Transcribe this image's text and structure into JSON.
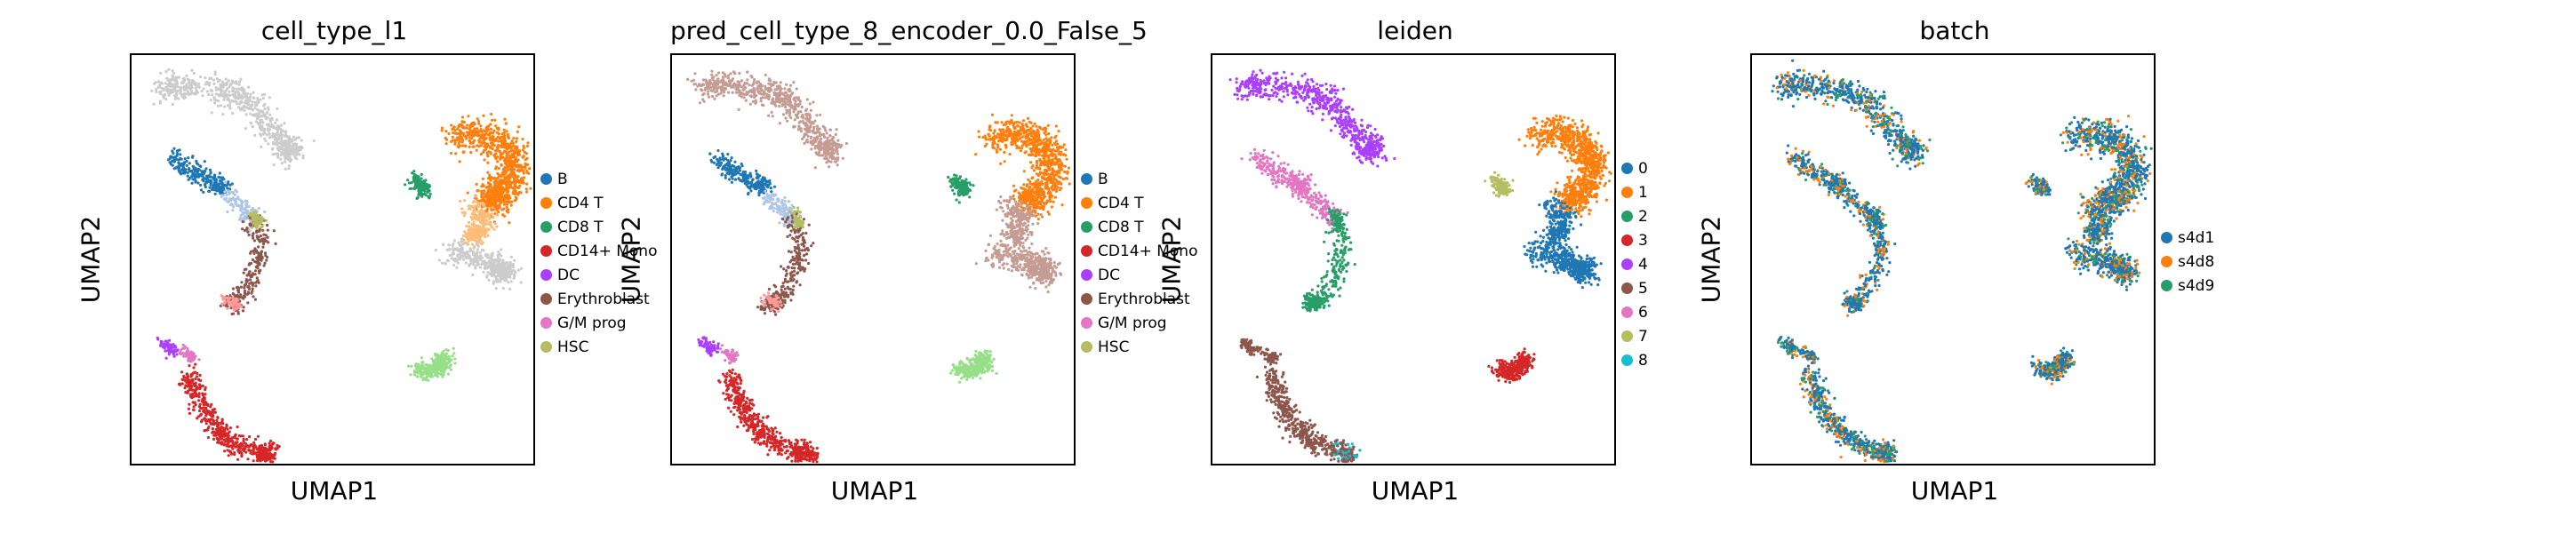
{
  "chart_data": [
    {
      "type": "scatter",
      "title": "cell_type_l1",
      "xlabel": "UMAP1",
      "ylabel": "UMAP2",
      "legend_position": "right",
      "legend": [
        {
          "label": "B",
          "color": "#1f77b4"
        },
        {
          "label": "CD4 T",
          "color": "#ff7f0e"
        },
        {
          "label": "CD8 T",
          "color": "#279e68"
        },
        {
          "label": "CD14+ Mono",
          "color": "#d62728"
        },
        {
          "label": "DC",
          "color": "#aa40fc"
        },
        {
          "label": "Erythroblast",
          "color": "#8c564b"
        },
        {
          "label": "G/M prog",
          "color": "#e377c2"
        },
        {
          "label": "HSC",
          "color": "#b5bd61"
        }
      ]
    },
    {
      "type": "scatter",
      "title": "pred_cell_type_8_encoder_0.0_False_5",
      "xlabel": "UMAP1",
      "ylabel": "UMAP2",
      "legend_position": "right",
      "legend": [
        {
          "label": "B",
          "color": "#1f77b4"
        },
        {
          "label": "CD4 T",
          "color": "#ff7f0e"
        },
        {
          "label": "CD8 T",
          "color": "#279e68"
        },
        {
          "label": "CD14+ Mono",
          "color": "#d62728"
        },
        {
          "label": "DC",
          "color": "#aa40fc"
        },
        {
          "label": "Erythroblast",
          "color": "#8c564b"
        },
        {
          "label": "G/M prog",
          "color": "#e377c2"
        },
        {
          "label": "HSC",
          "color": "#b5bd61"
        }
      ]
    },
    {
      "type": "scatter",
      "title": "leiden",
      "xlabel": "UMAP1",
      "ylabel": "UMAP2",
      "legend_position": "right",
      "legend": [
        {
          "label": "0",
          "color": "#1f77b4"
        },
        {
          "label": "1",
          "color": "#ff7f0e"
        },
        {
          "label": "2",
          "color": "#279e68"
        },
        {
          "label": "3",
          "color": "#d62728"
        },
        {
          "label": "4",
          "color": "#aa40fc"
        },
        {
          "label": "5",
          "color": "#8c564b"
        },
        {
          "label": "6",
          "color": "#e377c2"
        },
        {
          "label": "7",
          "color": "#b5bd61"
        },
        {
          "label": "8",
          "color": "#17becf"
        }
      ]
    },
    {
      "type": "scatter",
      "title": "batch",
      "xlabel": "UMAP1",
      "ylabel": "UMAP2",
      "legend_position": "right",
      "legend": [
        {
          "label": "s4d1",
          "color": "#1f77b4"
        },
        {
          "label": "s4d8",
          "color": "#ff7f0e"
        },
        {
          "label": "s4d9",
          "color": "#279e68"
        }
      ]
    }
  ]
}
